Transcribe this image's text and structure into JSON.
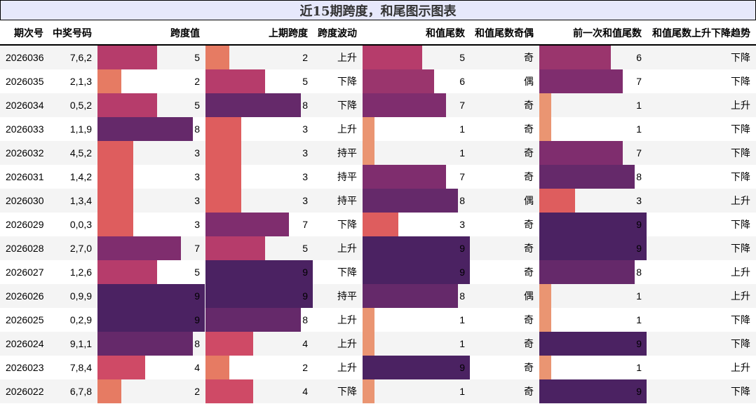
{
  "title": "近15期跨度，和尾图示图表",
  "colors": {
    "1": "#ea9572",
    "2": "#e67b63",
    "3": "#de5d5e",
    "4": "#cf4a66",
    "5": "#b63c6b",
    "6": "#9a356d",
    "7": "#7f2d6e",
    "8": "#65296a",
    "9": "#4b2262"
  },
  "headers": [
    "期次号",
    "中奖号码",
    "跨度值",
    "上期跨度",
    "跨度波动",
    "和值尾数",
    "和值尾数奇偶",
    "前一次和值尾数",
    "和值尾数上升下降趋势"
  ],
  "rows": [
    {
      "issue": "2026036",
      "numbers": "7,6,2",
      "span": 5,
      "prev_span": 2,
      "span_trend": "上升",
      "sum_tail": 5,
      "parity": "奇",
      "prev_sum_tail": 6,
      "tail_trend": "下降"
    },
    {
      "issue": "2026035",
      "numbers": "2,1,3",
      "span": 2,
      "prev_span": 5,
      "span_trend": "下降",
      "sum_tail": 6,
      "parity": "偶",
      "prev_sum_tail": 7,
      "tail_trend": "下降"
    },
    {
      "issue": "2026034",
      "numbers": "0,5,2",
      "span": 5,
      "prev_span": 8,
      "span_trend": "下降",
      "sum_tail": 7,
      "parity": "奇",
      "prev_sum_tail": 1,
      "tail_trend": "上升"
    },
    {
      "issue": "2026033",
      "numbers": "1,1,9",
      "span": 8,
      "prev_span": 3,
      "span_trend": "上升",
      "sum_tail": 1,
      "parity": "奇",
      "prev_sum_tail": 1,
      "tail_trend": "下降"
    },
    {
      "issue": "2026032",
      "numbers": "4,5,2",
      "span": 3,
      "prev_span": 3,
      "span_trend": "持平",
      "sum_tail": 1,
      "parity": "奇",
      "prev_sum_tail": 7,
      "tail_trend": "下降"
    },
    {
      "issue": "2026031",
      "numbers": "1,4,2",
      "span": 3,
      "prev_span": 3,
      "span_trend": "持平",
      "sum_tail": 7,
      "parity": "奇",
      "prev_sum_tail": 8,
      "tail_trend": "下降"
    },
    {
      "issue": "2026030",
      "numbers": "1,3,4",
      "span": 3,
      "prev_span": 3,
      "span_trend": "持平",
      "sum_tail": 8,
      "parity": "偶",
      "prev_sum_tail": 3,
      "tail_trend": "上升"
    },
    {
      "issue": "2026029",
      "numbers": "0,0,3",
      "span": 3,
      "prev_span": 7,
      "span_trend": "下降",
      "sum_tail": 3,
      "parity": "奇",
      "prev_sum_tail": 9,
      "tail_trend": "下降"
    },
    {
      "issue": "2026028",
      "numbers": "2,7,0",
      "span": 7,
      "prev_span": 5,
      "span_trend": "上升",
      "sum_tail": 9,
      "parity": "奇",
      "prev_sum_tail": 9,
      "tail_trend": "下降"
    },
    {
      "issue": "2026027",
      "numbers": "1,2,6",
      "span": 5,
      "prev_span": 9,
      "span_trend": "下降",
      "sum_tail": 9,
      "parity": "奇",
      "prev_sum_tail": 8,
      "tail_trend": "上升"
    },
    {
      "issue": "2026026",
      "numbers": "0,9,9",
      "span": 9,
      "prev_span": 9,
      "span_trend": "持平",
      "sum_tail": 8,
      "parity": "偶",
      "prev_sum_tail": 1,
      "tail_trend": "上升"
    },
    {
      "issue": "2026025",
      "numbers": "0,2,9",
      "span": 9,
      "prev_span": 8,
      "span_trend": "上升",
      "sum_tail": 1,
      "parity": "奇",
      "prev_sum_tail": 1,
      "tail_trend": "下降"
    },
    {
      "issue": "2026024",
      "numbers": "9,1,1",
      "span": 8,
      "prev_span": 4,
      "span_trend": "上升",
      "sum_tail": 1,
      "parity": "奇",
      "prev_sum_tail": 9,
      "tail_trend": "下降"
    },
    {
      "issue": "2026023",
      "numbers": "7,8,4",
      "span": 4,
      "prev_span": 2,
      "span_trend": "上升",
      "sum_tail": 9,
      "parity": "奇",
      "prev_sum_tail": 1,
      "tail_trend": "上升"
    },
    {
      "issue": "2026022",
      "numbers": "6,7,8",
      "span": 2,
      "prev_span": 4,
      "span_trend": "下降",
      "sum_tail": 1,
      "parity": "奇",
      "prev_sum_tail": 9,
      "tail_trend": "下降"
    }
  ]
}
